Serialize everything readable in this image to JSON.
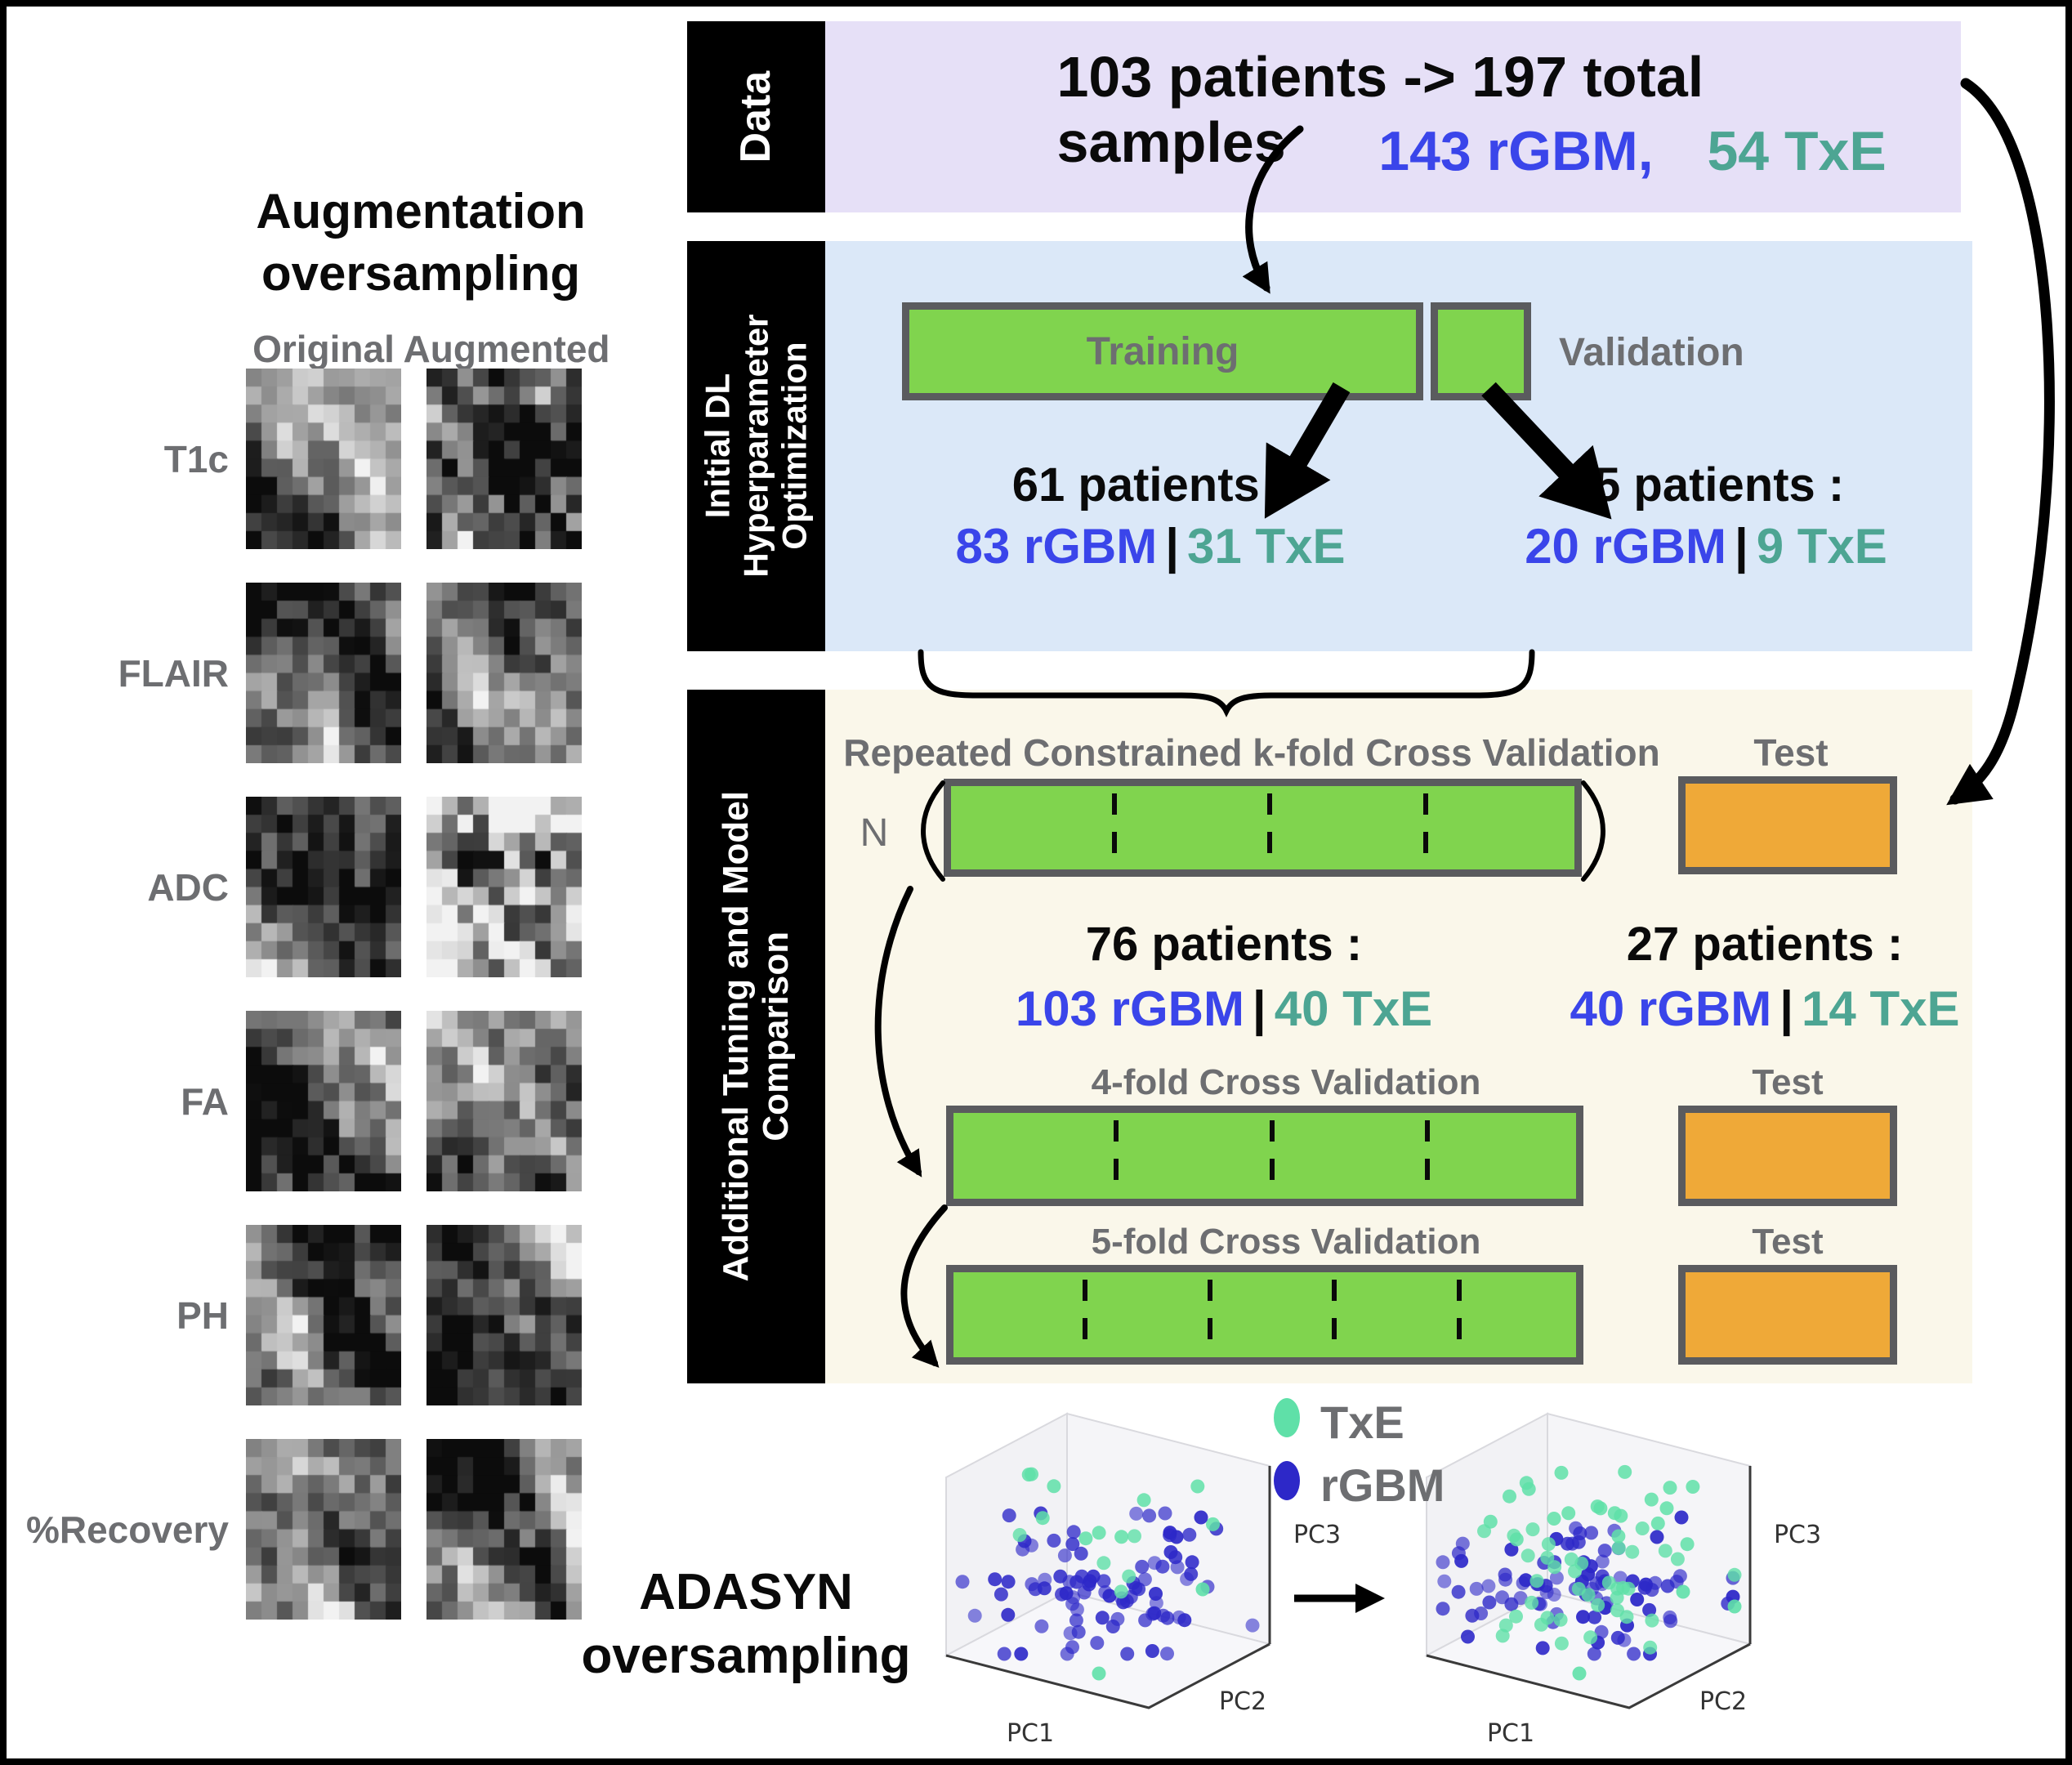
{
  "augmentation": {
    "title_line1": "Augmentation",
    "title_line2": "oversampling",
    "col_original": "Original",
    "col_augmented": "Augmented",
    "rows": [
      "T1c",
      "FLAIR",
      "ADC",
      "FA",
      "PH",
      "%Recovery"
    ]
  },
  "data_section": {
    "label": "Data",
    "headline": "103 patients -> 197 total samples",
    "rgbm": "143 rGBM,",
    "txe": "54 TxE"
  },
  "hyperparam_section": {
    "label_lines": [
      "Initial DL",
      "Hyperparameter",
      "Optimization"
    ],
    "training_label": "Training",
    "validation_label": "Validation",
    "train_patients": "61 patients :",
    "train_rgbm": "83 rGBM",
    "separator": "|",
    "train_txe": "31 TxE",
    "val_patients": "15 patients :",
    "val_rgbm": "20 rGBM",
    "val_txe": "9 TxE"
  },
  "tuning_section": {
    "label_lines": [
      "Additional Tuning and Model",
      "Comparison"
    ],
    "cv_title": "Repeated Constrained k-fold Cross Validation",
    "test_label_1": "Test",
    "n_label": "N",
    "cv_patients": "76 patients :",
    "cv_rgbm": "103 rGBM",
    "separator": "|",
    "cv_txe": "40 TxE",
    "holdout_patients": "27 patients :",
    "holdout_rgbm": "40 rGBM",
    "holdout_txe": "14 TxE",
    "fold4_title": "4-fold Cross Validation",
    "test_label_2": "Test",
    "fold5_title": "5-fold Cross Validation",
    "test_label_3": "Test"
  },
  "adasyn": {
    "title_line1": "ADASYN",
    "title_line2": "oversampling",
    "legend": [
      {
        "label": "TxE",
        "color": "#5fe0a8"
      },
      {
        "label": "rGBM",
        "color": "#2d28c8"
      }
    ],
    "axes_plot1": [
      "PC1",
      "PC2",
      "PC3"
    ],
    "axes_plot2": [
      "PC1",
      "PC2",
      "PC3"
    ]
  },
  "colors": {
    "rgbm_text": "#3a45ea",
    "txe_text": "#4da593",
    "data_panel": "#e6e0f7",
    "hyperparam_panel": "#dbe8f8",
    "tuning_panel": "#faf7ea",
    "fold_green": "#80d44e",
    "test_orange": "#efa938",
    "box_border_gray": "#5a5b5e",
    "scatter_rgbm": "#2d28c8",
    "scatter_txe": "#5fe0a8"
  }
}
